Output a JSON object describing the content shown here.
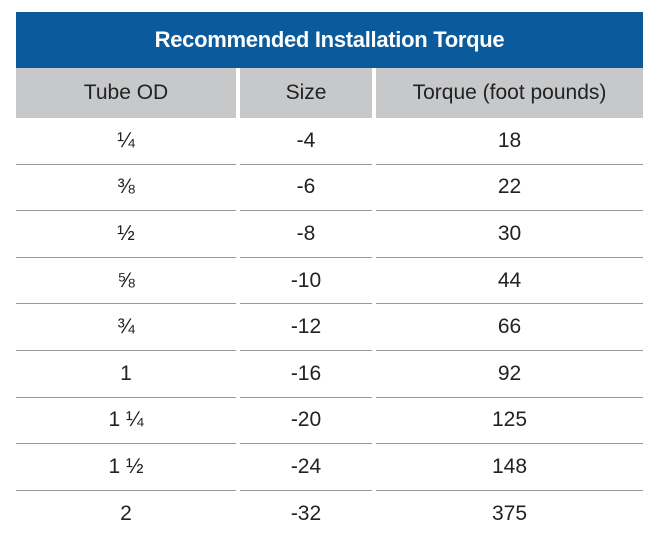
{
  "table": {
    "title": "Recommended Installation Torque",
    "headers": [
      "Tube OD",
      "Size",
      "Torque (foot pounds)"
    ],
    "rows": [
      [
        "¼",
        "-4",
        "18"
      ],
      [
        "⅜",
        "-6",
        "22"
      ],
      [
        "½",
        "-8",
        "30"
      ],
      [
        "⅝",
        "-10",
        "44"
      ],
      [
        "¾",
        "-12",
        "66"
      ],
      [
        "1",
        "-16",
        "92"
      ],
      [
        "1 ¼",
        "-20",
        "125"
      ],
      [
        "1 ½",
        "-24",
        "148"
      ],
      [
        "2",
        "-32",
        "375"
      ]
    ]
  },
  "colors": {
    "title_background": "#0a5a9c",
    "title_text": "#ffffff",
    "header_background": "#c7c8ca",
    "row_divider": "#9a9a9a"
  }
}
